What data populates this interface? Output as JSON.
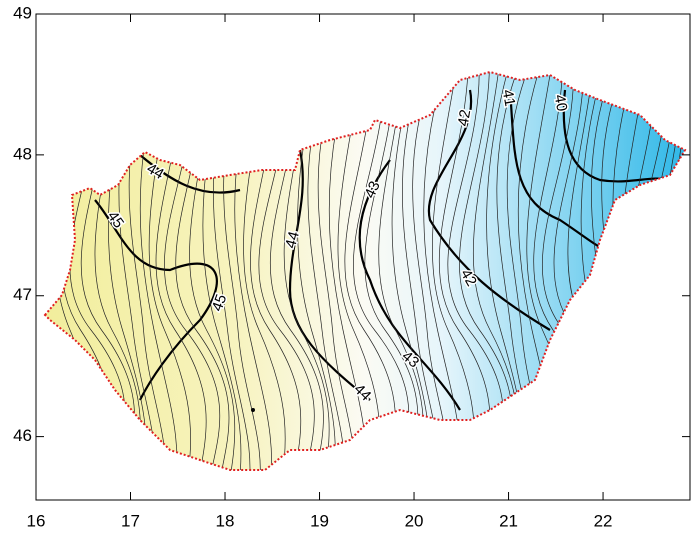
{
  "chart_data": {
    "type": "contour-map",
    "xlim": [
      16,
      22.92
    ],
    "ylim": [
      45.55,
      49
    ],
    "xticks": [
      16,
      17,
      18,
      19,
      20,
      21,
      22
    ],
    "yticks": [
      46,
      47,
      48,
      49
    ],
    "contour_labels": [
      44,
      45,
      44,
      45,
      44,
      43,
      43,
      42,
      42,
      41,
      40
    ]
  }
}
